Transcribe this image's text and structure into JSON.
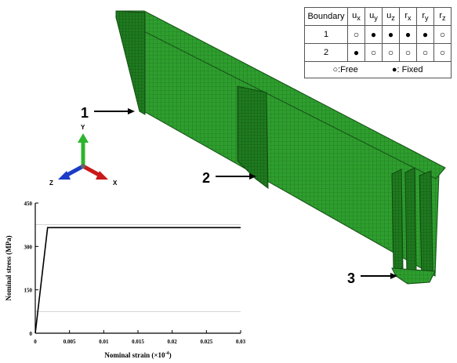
{
  "table": {
    "header": "Boundary",
    "dofs": [
      {
        "base": "u",
        "sub": "x"
      },
      {
        "base": "u",
        "sub": "y"
      },
      {
        "base": "u",
        "sub": "z"
      },
      {
        "base": "r",
        "sub": "x"
      },
      {
        "base": "r",
        "sub": "y"
      },
      {
        "base": "r",
        "sub": "z"
      }
    ],
    "rows": [
      {
        "id": "1",
        "marks": [
          "○",
          "●",
          "●",
          "●",
          "●",
          "○"
        ]
      },
      {
        "id": "2",
        "marks": [
          "●",
          "○",
          "○",
          "○",
          "○",
          "○"
        ]
      }
    ],
    "legend_free": "○:Free",
    "legend_fixed": "●: Fixed"
  },
  "callouts": {
    "one": "1",
    "two": "2",
    "three": "3"
  },
  "axes_triad": {
    "y": "Y",
    "z": "Z",
    "x": "X"
  },
  "colors": {
    "mesh": "#2e9e2e",
    "mesh_dark": "#1f6e1f",
    "y_axis": "#2db52d",
    "z_axis": "#1a3cc8",
    "x_axis": "#c81a1a"
  },
  "chart_data": {
    "type": "line",
    "xlabel": "Nominal strain (×10",
    "xlabel_exp": "-4",
    "xlabel_close": ")",
    "ylabel": "Nominal stress (MPa)",
    "xlim": [
      0,
      0.03
    ],
    "ylim": [
      0,
      450
    ],
    "xticks": [
      "0",
      "0.005",
      "0.01",
      "0.015",
      "0.02",
      "0.025",
      "0.03"
    ],
    "yticks": [
      "0",
      "150",
      "300",
      "450"
    ],
    "series": [
      {
        "x": [
          0,
          0.0018,
          0.03
        ],
        "y": [
          0,
          365,
          365
        ]
      }
    ]
  }
}
